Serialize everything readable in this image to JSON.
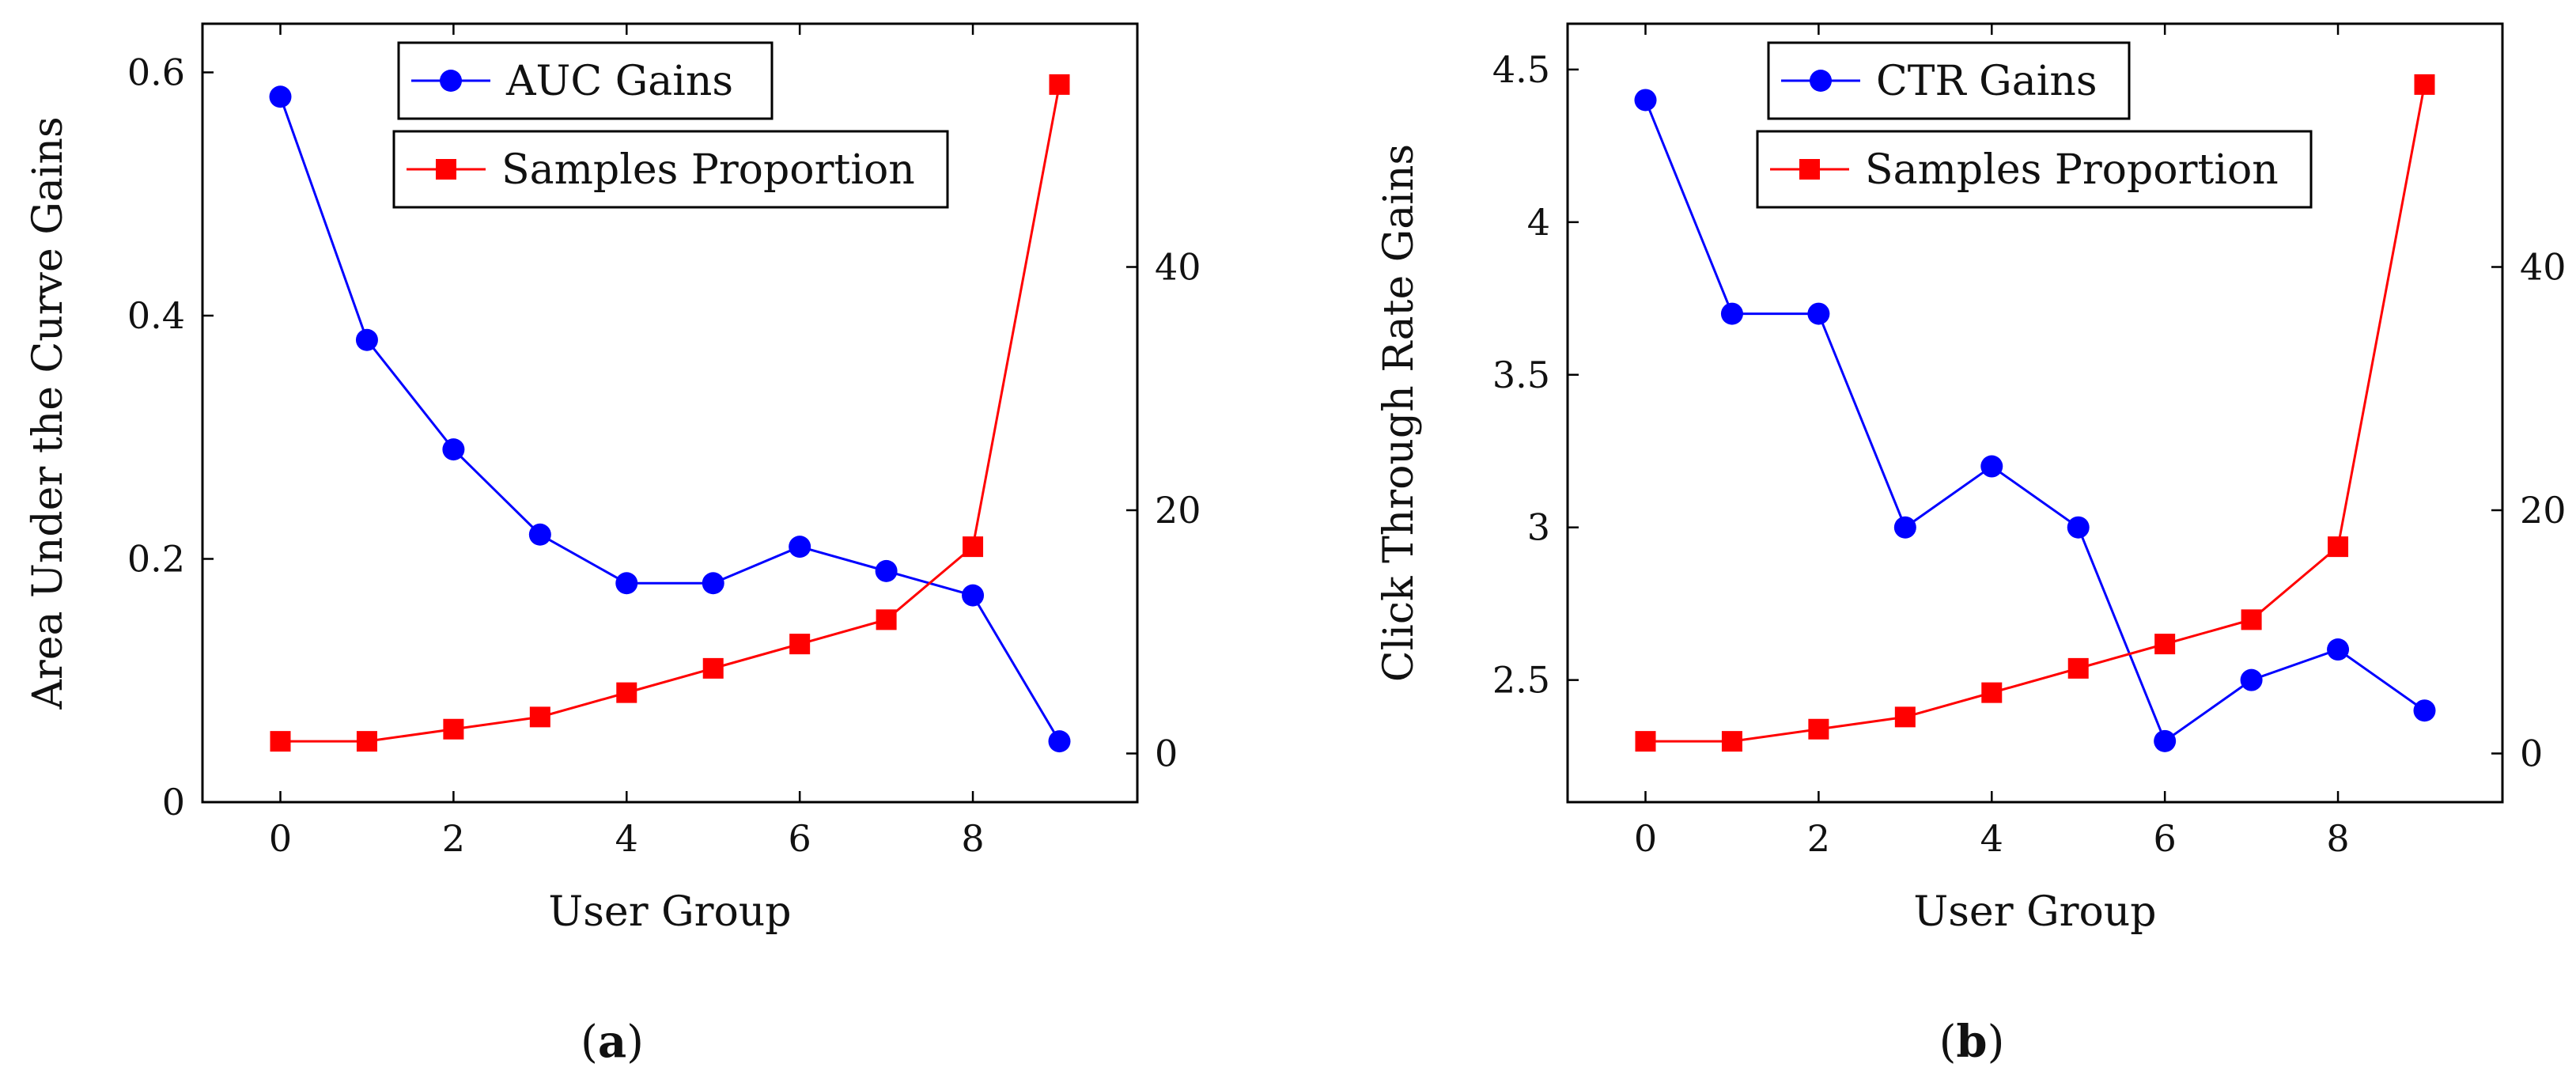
{
  "chart_data": [
    {
      "type": "line",
      "panel": "a",
      "caption_open": "(",
      "caption_letter": "a",
      "caption_close": ")",
      "xlabel": "User Group",
      "ylabel_left": "Area Under the Curve Gains",
      "x": [
        0,
        1,
        2,
        3,
        4,
        5,
        6,
        7,
        8,
        9
      ],
      "xlim": [
        -0.9,
        9.9
      ],
      "xticks": [
        "0",
        "2",
        "4",
        "6",
        "8"
      ],
      "xtick_values": [
        0,
        2,
        4,
        6,
        8
      ],
      "ylim_left": [
        0,
        0.64
      ],
      "yticks_left": [
        "0",
        "0.2",
        "0.4",
        "0.6"
      ],
      "ytick_values_left": [
        0,
        0.2,
        0.4,
        0.6
      ],
      "ylim_right": [
        -4,
        60
      ],
      "yticks_right": [
        "0",
        "20",
        "40"
      ],
      "ytick_values_right": [
        0,
        20,
        40
      ],
      "series": [
        {
          "name": "AUC Gains",
          "axis": "left",
          "color": "#0000ff",
          "marker": "circle",
          "values": [
            0.58,
            0.38,
            0.29,
            0.22,
            0.18,
            0.18,
            0.21,
            0.19,
            0.17,
            0.05
          ]
        },
        {
          "name": "Samples Proportion",
          "axis": "right",
          "color": "#ff0000",
          "marker": "square",
          "values": [
            1,
            1,
            2,
            3,
            5,
            7,
            9,
            11,
            17,
            55
          ]
        }
      ]
    },
    {
      "type": "line",
      "panel": "b",
      "caption_open": "(",
      "caption_letter": "b",
      "caption_close": ")",
      "xlabel": "User Group",
      "ylabel_left": "Click Through Rate Gains",
      "x": [
        0,
        1,
        2,
        3,
        4,
        5,
        6,
        7,
        8,
        9
      ],
      "xlim": [
        -0.9,
        9.9
      ],
      "xticks": [
        "0",
        "2",
        "4",
        "6",
        "8"
      ],
      "xtick_values": [
        0,
        2,
        4,
        6,
        8
      ],
      "ylim_left": [
        2.1,
        4.65
      ],
      "yticks_left": [
        "2.5",
        "3",
        "3.5",
        "4",
        "4.5"
      ],
      "ytick_values_left": [
        2.5,
        3,
        3.5,
        4,
        4.5
      ],
      "ylim_right": [
        -4,
        60
      ],
      "yticks_right": [
        "0",
        "20",
        "40"
      ],
      "ytick_values_right": [
        0,
        20,
        40
      ],
      "series": [
        {
          "name": "CTR Gains",
          "axis": "left",
          "color": "#0000ff",
          "marker": "circle",
          "values": [
            4.4,
            3.7,
            3.7,
            3.0,
            3.2,
            3.0,
            2.3,
            2.5,
            2.6,
            2.4
          ]
        },
        {
          "name": "Samples Proportion",
          "axis": "right",
          "color": "#ff0000",
          "marker": "square",
          "values": [
            1,
            1,
            2,
            3,
            5,
            7,
            9,
            11,
            17,
            55
          ]
        }
      ]
    }
  ]
}
